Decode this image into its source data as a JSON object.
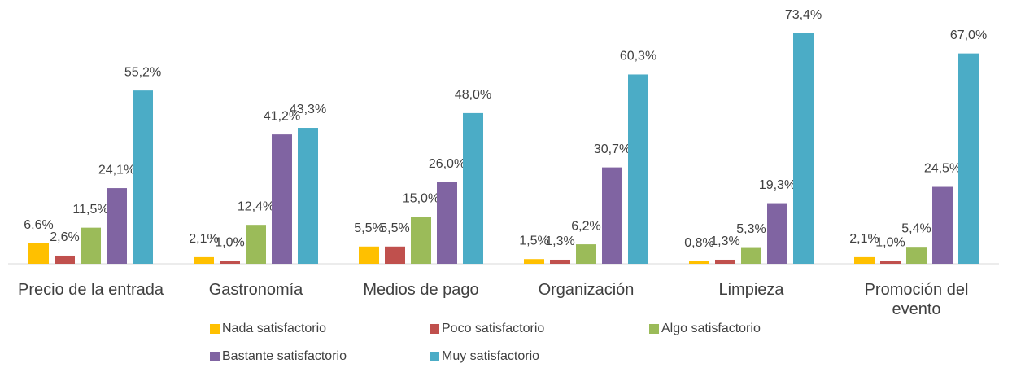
{
  "chart_data": {
    "type": "bar",
    "categories": [
      "Precio de la entrada",
      "Gastronomía",
      "Medios de pago",
      "Organización",
      "Limpieza",
      "Promoción del evento"
    ],
    "series": [
      {
        "name": "Nada satisfactorio",
        "color": "#FFC000",
        "values": [
          6.6,
          2.1,
          5.5,
          1.5,
          0.8,
          2.1
        ],
        "value_labels": [
          "6,6%",
          "2,1%",
          "5,5%",
          "1,5%",
          "0,8%",
          "2,1%"
        ]
      },
      {
        "name": "Poco satisfactorio",
        "color": "#C0504D",
        "values": [
          2.6,
          1.0,
          5.5,
          1.3,
          1.3,
          1.0
        ],
        "value_labels": [
          "2,6%",
          "1,0%",
          "5,5%",
          "1,3%",
          "1,3%",
          "1,0%"
        ]
      },
      {
        "name": "Algo satisfactorio",
        "color": "#9BBB59",
        "values": [
          11.5,
          12.4,
          15.0,
          6.2,
          5.3,
          5.4
        ],
        "value_labels": [
          "11,5%",
          "12,4%",
          "15,0%",
          "6,2%",
          "5,3%",
          "5,4%"
        ]
      },
      {
        "name": "Bastante satisfactorio",
        "color": "#8064A2",
        "values": [
          24.1,
          41.2,
          26.0,
          30.7,
          19.3,
          24.5
        ],
        "value_labels": [
          "24,1%",
          "41,2%",
          "26,0%",
          "30,7%",
          "19,3%",
          "24,5%"
        ]
      },
      {
        "name": "Muy satisfactorio",
        "color": "#4BACC6",
        "values": [
          55.2,
          43.3,
          48.0,
          60.3,
          73.4,
          67.0
        ],
        "value_labels": [
          "55,2%",
          "43,3%",
          "48,0%",
          "60,3%",
          "73,4%",
          "67,0%"
        ]
      }
    ],
    "ylim": [
      0,
      80
    ],
    "grid": false,
    "legend": "bottom"
  }
}
